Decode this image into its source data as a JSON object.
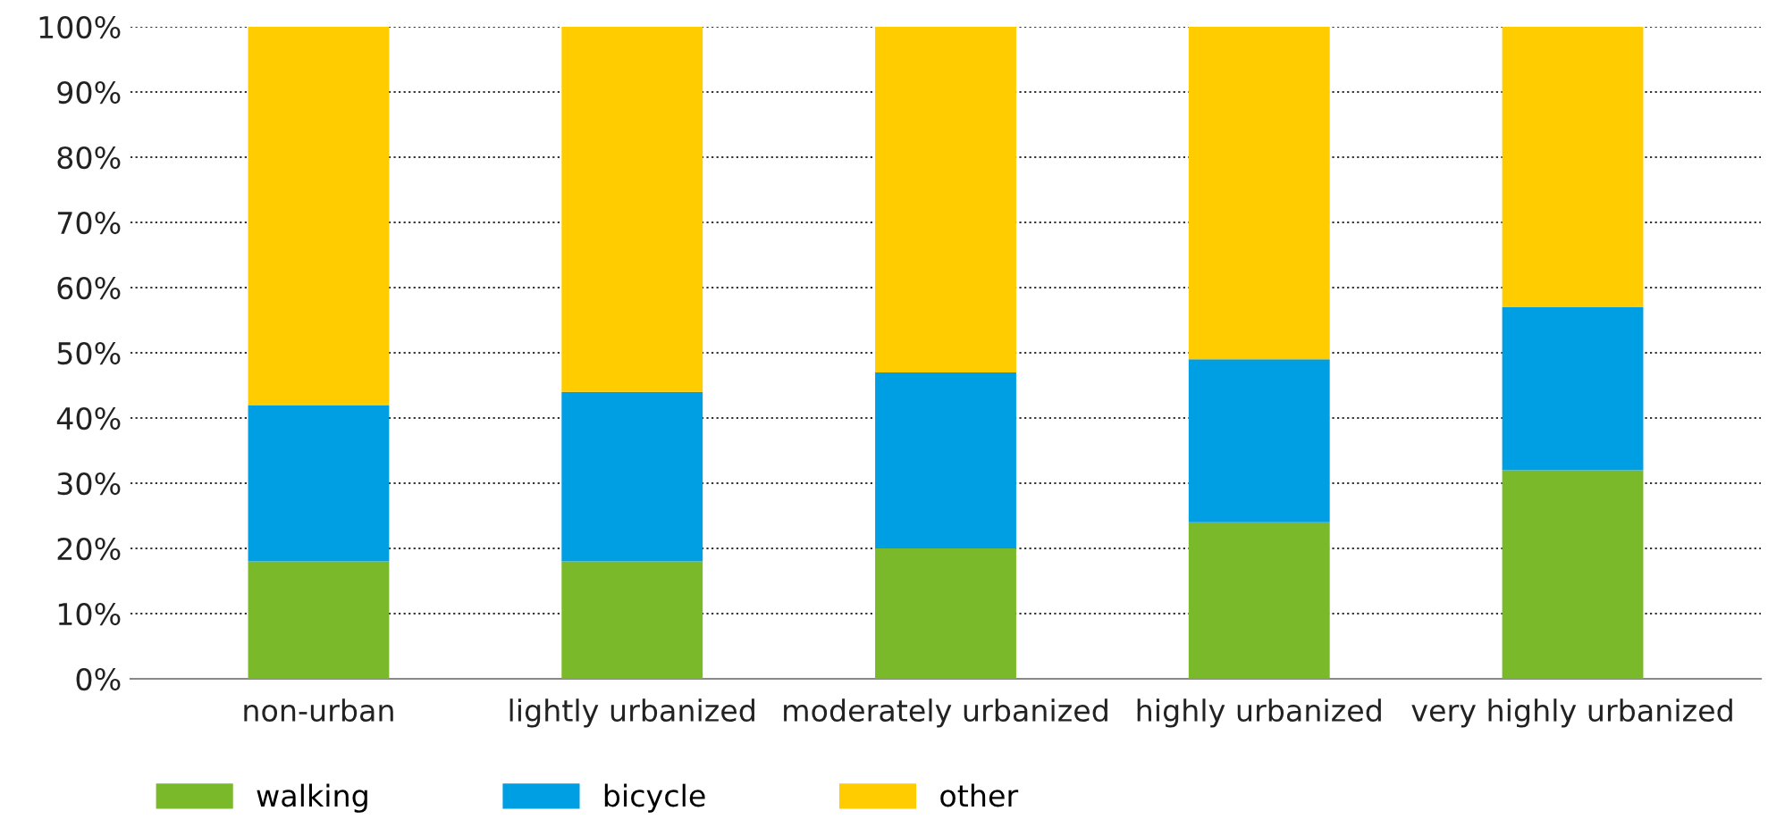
{
  "chart_data": {
    "type": "bar",
    "stacked": true,
    "categories": [
      "non-urban",
      "lightly urbanized",
      "moderately urbanized",
      "highly urbanized",
      "very highly urbanized"
    ],
    "series": [
      {
        "name": "walking",
        "color": "#7ab929",
        "values": [
          18,
          18,
          20,
          24,
          32
        ]
      },
      {
        "name": "bicycle",
        "color": "#009fe3",
        "values": [
          24,
          26,
          27,
          25,
          25
        ]
      },
      {
        "name": "other",
        "color": "#ffcc00",
        "values": [
          58,
          56,
          53,
          51,
          43
        ]
      }
    ],
    "ylim": [
      0,
      100
    ],
    "yticks": [
      {
        "value": 0,
        "label": "0%"
      },
      {
        "value": 10,
        "label": "10%"
      },
      {
        "value": 20,
        "label": "20%"
      },
      {
        "value": 30,
        "label": "30%"
      },
      {
        "value": 40,
        "label": "40%"
      },
      {
        "value": 50,
        "label": "50%"
      },
      {
        "value": 60,
        "label": "60%"
      },
      {
        "value": 70,
        "label": "70%"
      },
      {
        "value": 80,
        "label": "80%"
      },
      {
        "value": 90,
        "label": "90%"
      },
      {
        "value": 100,
        "label": "100%"
      }
    ],
    "grid": "y",
    "legend": "bottom"
  }
}
